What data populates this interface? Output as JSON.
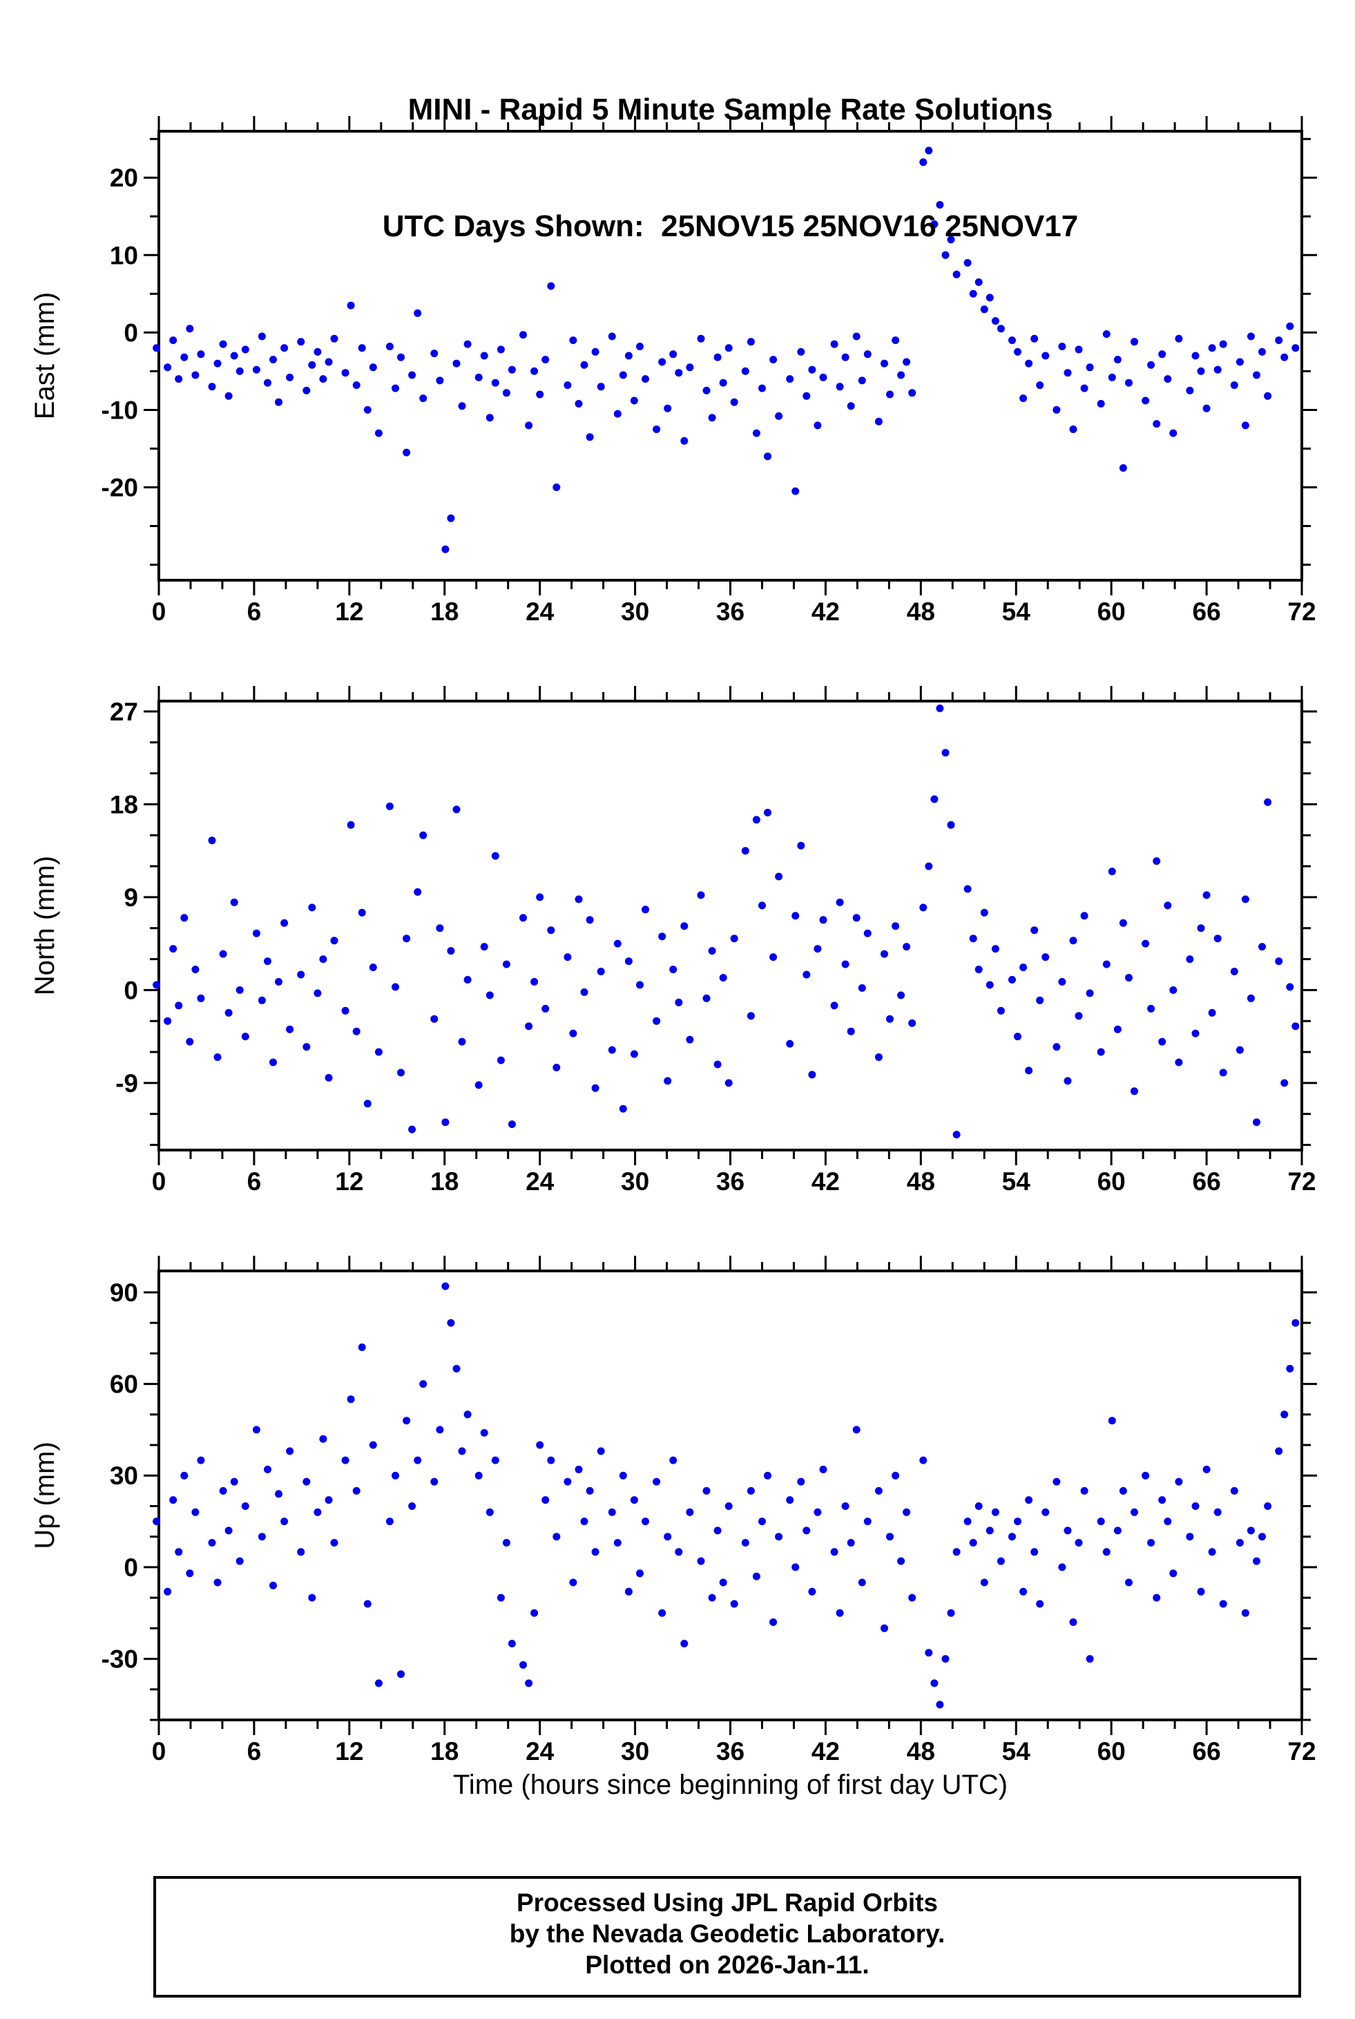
{
  "title": {
    "line1": "MINI - Rapid 5 Minute Sample Rate Solutions",
    "line2": "UTC Days Shown:  25NOV15 25NOV16 25NOV17"
  },
  "footer": {
    "line1": "Processed Using JPL Rapid Orbits",
    "line2": "by the Nevada Geodetic Laboratory.",
    "line3": "Plotted on 2026-Jan-11."
  },
  "chart_data": {
    "type": "scatter",
    "title": "MINI - Rapid 5 Minute Sample Rate Solutions",
    "subtitle": "UTC Days Shown:  25NOV15 25NOV16 25NOV17",
    "xlabel": "Time (hours since beginning of first day UTC)",
    "xlim": [
      0,
      72
    ],
    "x_ticks": [
      0,
      6,
      12,
      18,
      24,
      30,
      36,
      42,
      48,
      54,
      60,
      66,
      72
    ],
    "x_major_step": 6,
    "x_minor_step": 2,
    "x_start": 0,
    "x_step": 0.4,
    "marker_color": "#0000f0",
    "grid": false,
    "legend": "none",
    "panels": [
      {
        "name": "east",
        "ylabel": "East (mm)",
        "ylim": [
          -32,
          26
        ],
        "yticks": [
          -20,
          -10,
          0,
          10,
          20
        ],
        "y_minor_step": 5,
        "y": [
          -2,
          -4.5,
          -1,
          -6,
          -3.2,
          0.5,
          -5.5,
          -2.8,
          -7,
          -4,
          -1.5,
          -8.2,
          -3,
          -5,
          -2.2,
          -4.8,
          -0.5,
          -6.5,
          -3.5,
          -9,
          -2,
          -5.8,
          -1.2,
          -7.5,
          -4.2,
          -2.5,
          -6,
          -3.8,
          -0.8,
          -5.2,
          3.5,
          -6.8,
          -2,
          -10,
          -4.5,
          -13,
          -1.8,
          -7.2,
          -3.2,
          -15.5,
          -5.5,
          2.5,
          -8.5,
          -2.7,
          -6.2,
          -28,
          -24,
          -4,
          -9.5,
          -1.5,
          -5.8,
          -3,
          -11,
          -6.5,
          -2.2,
          -7.8,
          -4.8,
          -0.3,
          -12,
          -5,
          -8,
          -3.5,
          6,
          -20,
          -6.8,
          -1,
          -9.2,
          -4.2,
          -13.5,
          -2.5,
          -7,
          -0.5,
          -10.5,
          -5.5,
          -3,
          -8.8,
          -1.8,
          -6,
          -12.5,
          -3.8,
          -9.8,
          -2.8,
          -5.2,
          -14,
          -4.5,
          -0.8,
          -7.5,
          -11,
          -3.2,
          -6.5,
          -2,
          -9,
          -5,
          -1.2,
          -13,
          -7.2,
          -16,
          -3.5,
          -10.8,
          -6,
          -20.5,
          -2.5,
          -8.2,
          -4.8,
          -12,
          -5.8,
          -1.5,
          -7,
          -3.2,
          -9.5,
          -0.5,
          -6.2,
          -2.8,
          -11.5,
          -4,
          -8,
          -1,
          -5.5,
          -3.8,
          -7.8,
          22,
          23.5,
          14,
          16.5,
          10,
          12,
          7.5,
          9,
          5,
          6.5,
          3,
          4.5,
          1.5,
          0.5,
          -1,
          -2.5,
          -8.5,
          -4,
          -0.8,
          -6.8,
          -3,
          -10,
          -1.8,
          -5.2,
          -12.5,
          -2.2,
          -7.2,
          -4.5,
          -9.2,
          -0.2,
          -5.8,
          -3.5,
          -17.5,
          -6.5,
          -1.2,
          -8.8,
          -4.2,
          -11.8,
          -2.8,
          -6,
          -13,
          -0.8,
          -7.5,
          -3,
          -5,
          -9.8,
          -2,
          -4.8,
          -1.5,
          -6.8,
          -3.8,
          -12,
          -0.5,
          -5.5,
          -2.5,
          -8.2,
          -1,
          -3.2,
          0.8,
          -2
        ]
      },
      {
        "name": "north",
        "ylabel": "North (mm)",
        "ylim": [
          -15.5,
          28
        ],
        "yticks": [
          -9,
          0,
          9,
          18,
          27
        ],
        "y_minor_step": 3,
        "y": [
          0.5,
          -3,
          4,
          -1.5,
          7,
          -5,
          2,
          -0.8,
          14.5,
          -6.5,
          3.5,
          -2.2,
          8.5,
          0,
          -4.5,
          5.5,
          -1,
          2.8,
          -7,
          0.8,
          6.5,
          -3.8,
          1.5,
          -5.5,
          8,
          -0.3,
          3,
          -8.5,
          4.8,
          -2,
          16,
          -4,
          7.5,
          -11,
          2.2,
          -6,
          17.8,
          0.3,
          -8,
          5,
          -13.5,
          9.5,
          15,
          -2.8,
          6,
          -12.8,
          3.8,
          17.5,
          -5,
          1,
          -9.2,
          4.2,
          -0.5,
          13,
          -6.8,
          2.5,
          -13,
          7,
          -3.5,
          0.8,
          9,
          -1.8,
          5.8,
          -7.5,
          3.2,
          -4.2,
          8.8,
          -0.2,
          6.8,
          -9.5,
          1.8,
          -5.8,
          4.5,
          -11.5,
          2.8,
          -6.2,
          0.5,
          7.8,
          -3,
          5.2,
          -8.8,
          2,
          -1.2,
          6.2,
          -4.8,
          9.2,
          -0.8,
          3.8,
          -7.2,
          1.2,
          -9,
          5,
          13.5,
          -2.5,
          16.5,
          8.2,
          17.2,
          3.2,
          11,
          -5.2,
          7.2,
          14,
          1.5,
          -8.2,
          4,
          6.8,
          -1.5,
          8.5,
          2.5,
          -4,
          7,
          0.2,
          5.5,
          -6.5,
          3.5,
          -2.8,
          6.2,
          -0.5,
          4.2,
          -3.2,
          8,
          12,
          18.5,
          27.3,
          23,
          16,
          -14,
          9.8,
          5,
          2,
          7.5,
          0.5,
          4,
          -2,
          1,
          -4.5,
          2.2,
          -7.8,
          5.8,
          -1,
          3.2,
          -5.5,
          0.8,
          -8.8,
          4.8,
          -2.5,
          7.2,
          -0.3,
          -6,
          2.5,
          11.5,
          -3.8,
          6.5,
          1.2,
          -9.8,
          4.5,
          -1.8,
          12.5,
          -5,
          8.2,
          0,
          -7,
          3,
          -4.2,
          6,
          9.2,
          -2.2,
          5,
          -8,
          1.8,
          -5.8,
          8.8,
          -0.8,
          -12.8,
          4.2,
          18.2,
          2.8,
          -9,
          0.3,
          -3.5
        ]
      },
      {
        "name": "up",
        "ylabel": "Up (mm)",
        "ylim": [
          -50,
          97
        ],
        "yticks": [
          -30,
          0,
          30,
          60,
          90
        ],
        "y_minor_step": 10,
        "y": [
          15,
          -8,
          22,
          5,
          30,
          -2,
          18,
          35,
          8,
          -5,
          25,
          12,
          28,
          2,
          20,
          45,
          10,
          32,
          -6,
          24,
          15,
          38,
          5,
          28,
          -10,
          18,
          42,
          22,
          8,
          35,
          55,
          25,
          72,
          -12,
          40,
          -38,
          15,
          30,
          -35,
          48,
          20,
          35,
          60,
          28,
          45,
          92,
          80,
          65,
          38,
          50,
          30,
          44,
          18,
          35,
          -10,
          8,
          -25,
          -32,
          -38,
          -15,
          40,
          22,
          35,
          10,
          28,
          -5,
          32,
          15,
          25,
          5,
          38,
          18,
          8,
          30,
          -8,
          22,
          -2,
          15,
          28,
          -15,
          10,
          35,
          5,
          -25,
          18,
          2,
          25,
          -10,
          12,
          -5,
          20,
          -12,
          8,
          25,
          -3,
          15,
          30,
          -18,
          10,
          22,
          0,
          28,
          12,
          -8,
          18,
          32,
          5,
          -15,
          20,
          8,
          45,
          -5,
          15,
          25,
          -20,
          10,
          30,
          2,
          18,
          -10,
          35,
          -28,
          -38,
          -45,
          -30,
          -15,
          5,
          15,
          8,
          20,
          -5,
          12,
          18,
          2,
          10,
          15,
          -8,
          22,
          5,
          -12,
          18,
          28,
          0,
          12,
          -18,
          8,
          25,
          -30,
          15,
          5,
          48,
          12,
          25,
          -5,
          18,
          30,
          8,
          -10,
          22,
          15,
          -2,
          28,
          10,
          20,
          -8,
          32,
          5,
          18,
          -12,
          25,
          8,
          -15,
          12,
          2,
          10,
          20,
          38,
          50,
          65,
          80
        ]
      }
    ]
  }
}
